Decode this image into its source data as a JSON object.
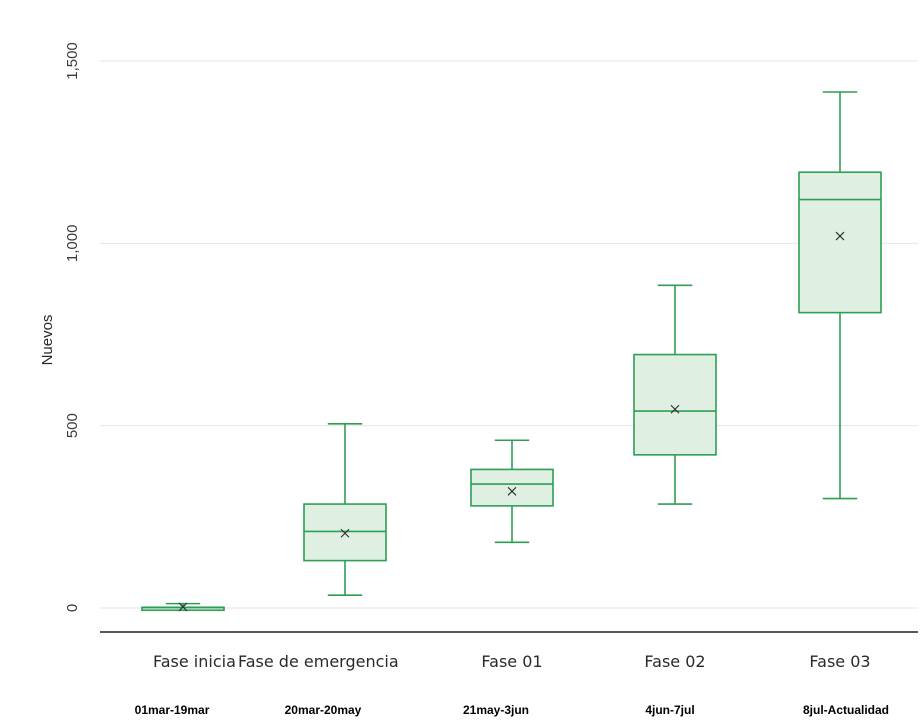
{
  "chart_data": {
    "type": "box",
    "ylabel": "Nuevos",
    "ylim": [
      -60,
      1560
    ],
    "yticks": [
      {
        "value": 0,
        "label": "0"
      },
      {
        "value": 500,
        "label": "500"
      },
      {
        "value": 1000,
        "label": "1,000"
      },
      {
        "value": 1500,
        "label": "1,500"
      }
    ],
    "grid": true,
    "categories": [
      "Fase inicia",
      "Fase de emergencia",
      "Fase 01",
      "Fase 02",
      "Fase 03"
    ],
    "subtitles": [
      "01mar-19mar",
      "20mar-20may",
      "21may-3jun",
      "4jun-7jul",
      "8jul-Actualidad"
    ],
    "boxes": [
      {
        "min": 0,
        "q1": 0,
        "median": 1,
        "q3": 2,
        "max": 12,
        "mean": 3
      },
      {
        "min": 35,
        "q1": 130,
        "median": 210,
        "q3": 285,
        "max": 505,
        "mean": 205
      },
      {
        "min": 180,
        "q1": 280,
        "median": 340,
        "q3": 380,
        "max": 460,
        "mean": 320
      },
      {
        "min": 285,
        "q1": 420,
        "median": 540,
        "q3": 695,
        "max": 885,
        "mean": 545
      },
      {
        "min": 300,
        "q1": 810,
        "median": 1120,
        "q3": 1195,
        "max": 1415,
        "mean": 1020
      }
    ],
    "colors": {
      "stroke": "#2e9e55",
      "fill": "#dff0e2",
      "axis": "#222222",
      "grid": "#e6e6e6"
    }
  }
}
